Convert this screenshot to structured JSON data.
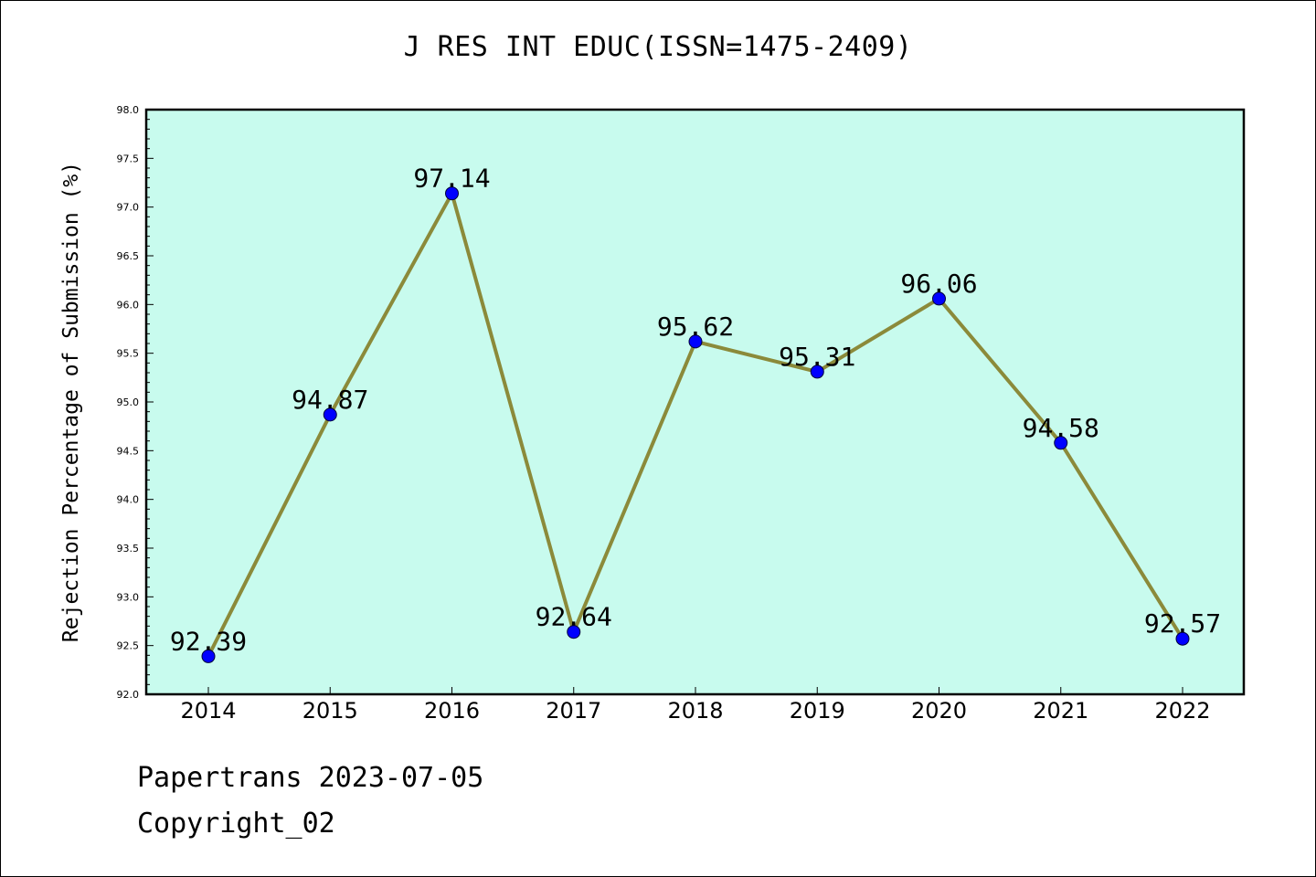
{
  "chart_data": {
    "type": "line",
    "title": "J RES INT EDUC(ISSN=1475-2409)",
    "xlabel": "",
    "ylabel": "Rejection Percentage of Submission (%)",
    "categories": [
      "2014",
      "2015",
      "2016",
      "2017",
      "2018",
      "2019",
      "2020",
      "2021",
      "2022"
    ],
    "series": [
      {
        "values": [
          92.39,
          94.87,
          97.14,
          92.64,
          95.62,
          95.31,
          96.06,
          94.58,
          92.57
        ]
      }
    ],
    "data_labels": [
      "92.39",
      "94.87",
      "97.14",
      "92.64",
      "95.62",
      "95.31",
      "96.06",
      "94.58",
      "92.57"
    ],
    "ylim": [
      92.0,
      98.0
    ],
    "yticks": [
      "92.0",
      "92.5",
      "93.0",
      "93.5",
      "94.0",
      "94.5",
      "95.0",
      "95.5",
      "96.0",
      "96.5",
      "97.0",
      "97.5",
      "98.0"
    ],
    "grid": false,
    "colors": {
      "plot_background": "#c8fbee",
      "line": "#8b8a3a",
      "marker": "#0000ff",
      "axis": "#000000"
    }
  },
  "footer": {
    "date_line": "Papertrans 2023-07-05",
    "copyright_line": "Copyright_02"
  }
}
